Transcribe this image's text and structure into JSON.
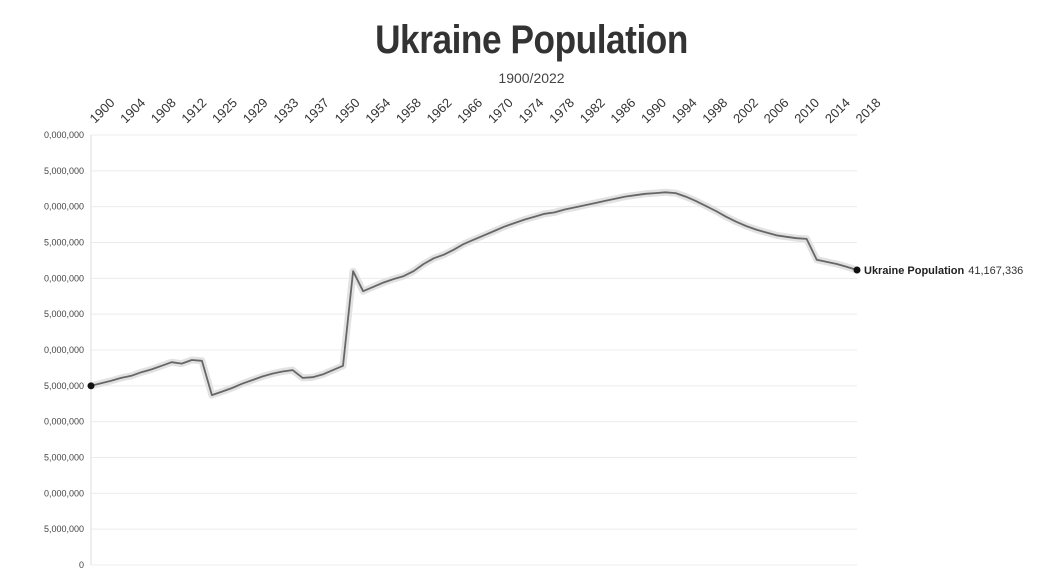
{
  "title": "Ukraine Population",
  "subtitle": "1900/2022",
  "chart_data": {
    "type": "line",
    "title": "Ukraine Population",
    "subtitle": "1900/2022",
    "xlabel": "",
    "ylabel": "",
    "ylim": [
      0,
      60000000
    ],
    "grid": true,
    "legend": "end-of-line label",
    "x_tick_labels": [
      "1900",
      "1904",
      "1908",
      "1912",
      "1925",
      "1929",
      "1933",
      "1937",
      "1950",
      "1954",
      "1958",
      "1962",
      "1966",
      "1970",
      "1974",
      "1978",
      "1982",
      "1986",
      "1990",
      "1994",
      "1998",
      "2002",
      "2006",
      "2010",
      "2014",
      "2018"
    ],
    "y_tick_labels": [
      "0",
      "5,000,000",
      "0,000,000",
      "5,000,000",
      "0,000,000",
      "5,000,000",
      "0,000,000",
      "5,000,000",
      "0,000,000",
      "5,000,000",
      "0,000,000",
      "5,000,000",
      "0,000,000"
    ],
    "series": [
      {
        "name": "Ukraine Population",
        "color": "#666666",
        "values": [
          25000000,
          25350000,
          25700000,
          26100000,
          26400000,
          26900000,
          27300000,
          27800000,
          28300000,
          28100000,
          28600000,
          28500000,
          23700000,
          24200000,
          24700000,
          25300000,
          25800000,
          26300000,
          26700000,
          27000000,
          27200000,
          26100000,
          26200000,
          26600000,
          27200000,
          27800000,
          41000000,
          38200000,
          38800000,
          39400000,
          39900000,
          40300000,
          41000000,
          42000000,
          42800000,
          43300000,
          44000000,
          44800000,
          45400000,
          46000000,
          46600000,
          47200000,
          47700000,
          48200000,
          48600000,
          49000000,
          49200000,
          49600000,
          49900000,
          50200000,
          50500000,
          50800000,
          51100000,
          51400000,
          51600000,
          51800000,
          51900000,
          52000000,
          51900000,
          51400000,
          50800000,
          50100000,
          49400000,
          48600000,
          47900000,
          47300000,
          46800000,
          46400000,
          46000000,
          45800000,
          45600000,
          45500000,
          42600000,
          42300000,
          42000000,
          41600000,
          41167336
        ]
      }
    ],
    "end_label": {
      "name": "Ukraine Population",
      "value": "41,167,336"
    }
  }
}
